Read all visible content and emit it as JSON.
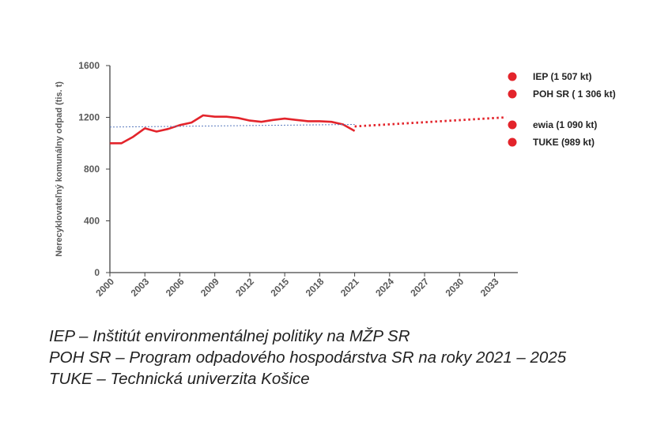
{
  "chart_data": {
    "type": "line",
    "ylabel": "Nerecyklovateľný  komunálny odpad (tis. t)",
    "ylim": [
      0,
      1600
    ],
    "yticks": [
      "0",
      "400",
      "800",
      "1200",
      "1600"
    ],
    "xlim": [
      2000,
      2035
    ],
    "xticks": [
      "2000",
      "2003",
      "2006",
      "2009",
      "2012",
      "2015",
      "2018",
      "2021",
      "2024",
      "2027",
      "2030",
      "2033"
    ],
    "grid": false,
    "legend_position": "right",
    "series": [
      {
        "style": "solid",
        "color": "#e3242b",
        "x": [
          2000,
          2001,
          2002,
          2003,
          2004,
          2005,
          2006,
          2007,
          2008,
          2009,
          2010,
          2011,
          2012,
          2013,
          2014,
          2015,
          2016,
          2017,
          2018,
          2019,
          2020,
          2021
        ],
        "values": [
          1000,
          1000,
          1050,
          1115,
          1090,
          1110,
          1140,
          1160,
          1215,
          1205,
          1205,
          1195,
          1175,
          1165,
          1180,
          1190,
          1180,
          1170,
          1170,
          1165,
          1145,
          1095
        ]
      },
      {
        "style": "dotted",
        "color": "#e3242b",
        "x": [
          2021,
          2034
        ],
        "values": [
          1130,
          1200
        ]
      },
      {
        "style": "thin-dotted",
        "color": "#5b7bbf",
        "x": [
          2000,
          2021
        ],
        "values": [
          1125,
          1145
        ]
      }
    ],
    "legend": [
      {
        "label": "IEP (1 507 kt)",
        "color": "#e3242b"
      },
      {
        "label": "POH SR ( 1 306 kt)",
        "color": "#e3242b"
      },
      {
        "label": "ewia (1 090 kt)",
        "color": "#e3242b"
      },
      {
        "label": "TUKE (989 kt)",
        "color": "#e3242b"
      }
    ]
  },
  "notes": [
    "IEP – Inštitút environmentálnej politiky na MŽP SR",
    "POH SR – Program odpadového hospodárstva SR na roky 2021 – 2025",
    "TUKE – Technická univerzita Košice"
  ]
}
